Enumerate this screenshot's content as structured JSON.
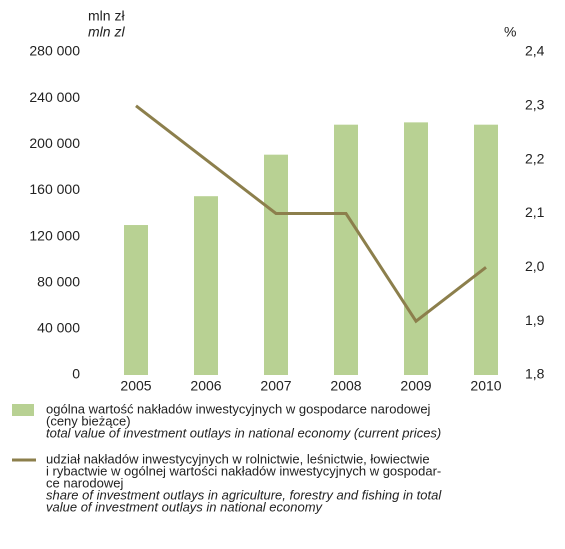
{
  "chart_data": {
    "type": "bar_line",
    "y_unit": "mln zł",
    "y_unit_en": "mln zl",
    "y2_unit": "%",
    "categories": [
      "2005",
      "2006",
      "2007",
      "2008",
      "2009",
      "2010"
    ],
    "series": [
      {
        "name": [
          "ogólna wartość nakładów inwestycyjnych w gospodarce narodowej",
          "(ceny bieżące)"
        ],
        "name_en": [
          "total value of investment outlays in national economy (current prices)"
        ],
        "type": "bar",
        "color": "#b8d193",
        "values": [
          130000,
          155000,
          191000,
          217000,
          219000,
          217000
        ]
      },
      {
        "name": [
          "udział nakładów inwestycyjnych w rolnictwie, leśnictwie, łowiectwie",
          "i rybactwie w ogólnej wartości nakładów inwestycyjnych w gospodar-",
          "ce narodowej"
        ],
        "name_en": [
          "share of investment outlays in agriculture, forestry and fishing in total",
          "value of investment outlays in national economy"
        ],
        "type": "line",
        "axis": "y2",
        "color": "#8c7f4c",
        "values": [
          2.3,
          2.2,
          2.1,
          2.1,
          1.9,
          2.0
        ]
      }
    ],
    "ylim": [
      0,
      280000
    ],
    "yticks": [
      0,
      {
        "value": 40000,
        "label": "40 000"
      },
      {
        "value": 80000,
        "label": "80 000"
      },
      {
        "value": 120000,
        "label": "120 000"
      },
      {
        "value": 160000,
        "label": "160 000"
      },
      {
        "value": 200000,
        "label": "200 000"
      },
      {
        "value": 240000,
        "label": "240 000"
      },
      {
        "value": 280000,
        "label": "280 000"
      }
    ],
    "y2lim": [
      1.8,
      2.4
    ],
    "y2ticks": [
      {
        "value": 1.8,
        "label": "1,8"
      },
      {
        "value": 1.9,
        "label": "1,9"
      },
      {
        "value": 2.0,
        "label": "2,0"
      },
      {
        "value": 2.1,
        "label": "2,1"
      },
      {
        "value": 2.2,
        "label": "2,2"
      },
      {
        "value": 2.3,
        "label": "2,3"
      },
      {
        "value": 2.4,
        "label": "2,4"
      }
    ]
  }
}
